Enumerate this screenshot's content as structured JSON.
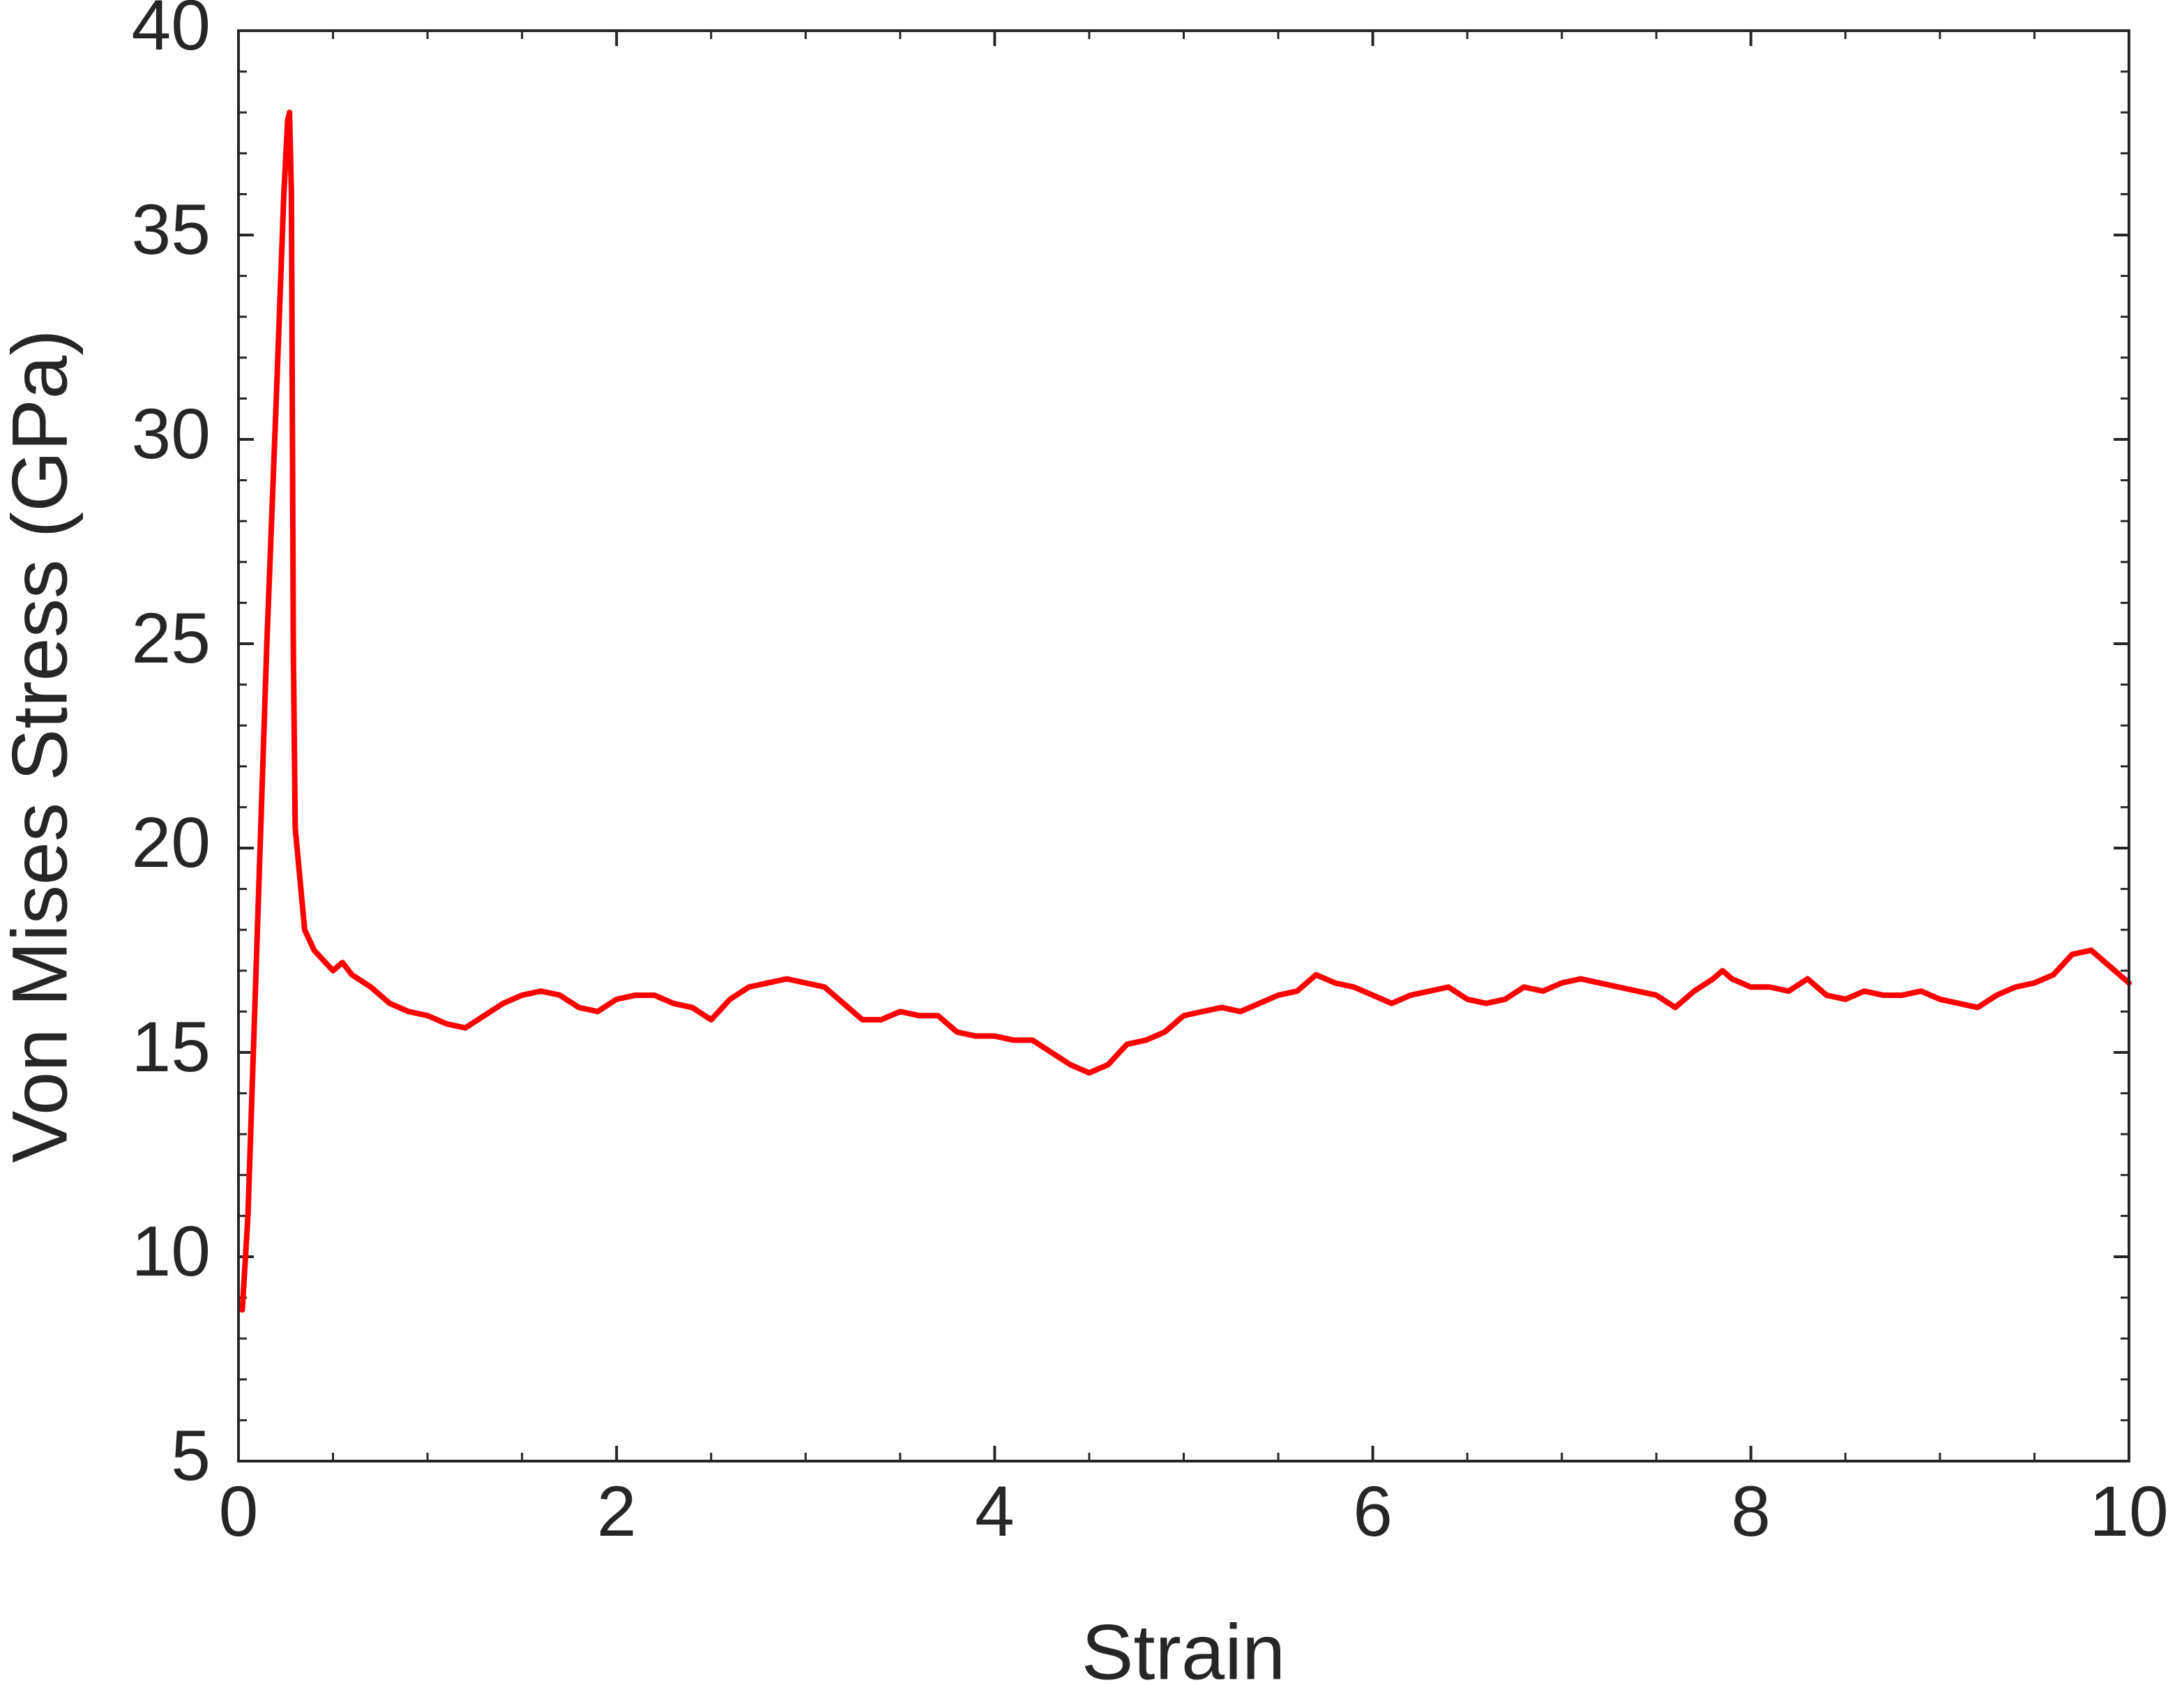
{
  "chart_data": {
    "type": "line",
    "x_label": "Strain",
    "y_label": "Von Mises Stress (GPa)",
    "xlim": [
      0,
      10
    ],
    "xticks": [
      0,
      2,
      4,
      6,
      8,
      10
    ],
    "ylim": [
      5,
      40
    ],
    "yticks": [
      5,
      10,
      15,
      20,
      25,
      30,
      35,
      40
    ],
    "grid": false,
    "x": [
      0.02,
      0.05,
      0.1,
      0.15,
      0.2,
      0.24,
      0.26,
      0.27,
      0.28,
      0.29,
      0.3,
      0.35,
      0.4,
      0.5,
      0.55,
      0.6,
      0.7,
      0.8,
      0.9,
      1.0,
      1.1,
      1.2,
      1.3,
      1.4,
      1.5,
      1.6,
      1.7,
      1.8,
      1.9,
      2.0,
      2.1,
      2.2,
      2.3,
      2.4,
      2.5,
      2.6,
      2.7,
      2.8,
      2.9,
      3.0,
      3.1,
      3.2,
      3.3,
      3.4,
      3.5,
      3.6,
      3.7,
      3.8,
      3.9,
      4.0,
      4.1,
      4.2,
      4.3,
      4.4,
      4.5,
      4.6,
      4.7,
      4.8,
      4.9,
      5.0,
      5.1,
      5.2,
      5.3,
      5.4,
      5.5,
      5.6,
      5.7,
      5.8,
      5.9,
      6.0,
      6.1,
      6.2,
      6.3,
      6.4,
      6.5,
      6.6,
      6.7,
      6.8,
      6.9,
      7.0,
      7.1,
      7.2,
      7.3,
      7.4,
      7.5,
      7.6,
      7.7,
      7.8,
      7.85,
      7.9,
      8.0,
      8.1,
      8.2,
      8.3,
      8.4,
      8.5,
      8.6,
      8.7,
      8.8,
      8.9,
      9.0,
      9.1,
      9.2,
      9.3,
      9.4,
      9.5,
      9.6,
      9.7,
      9.8,
      9.9,
      10.0
    ],
    "series": [
      {
        "color": "#ff0000",
        "values": [
          8.7,
          11,
          18,
          25,
          31,
          36,
          37.8,
          38,
          36,
          25,
          20.5,
          18,
          17.5,
          17,
          17.2,
          16.9,
          16.6,
          16.2,
          16.0,
          15.9,
          15.7,
          15.6,
          15.9,
          16.2,
          16.4,
          16.5,
          16.4,
          16.1,
          16.0,
          16.3,
          16.4,
          16.4,
          16.2,
          16.1,
          15.8,
          16.3,
          16.6,
          16.7,
          16.8,
          16.7,
          16.6,
          16.2,
          15.8,
          15.8,
          16.0,
          15.9,
          15.9,
          15.5,
          15.4,
          15.4,
          15.3,
          15.3,
          15.0,
          14.7,
          14.5,
          14.7,
          15.2,
          15.3,
          15.5,
          15.9,
          16.0,
          16.1,
          16.0,
          16.2,
          16.4,
          16.5,
          16.9,
          16.7,
          16.6,
          16.4,
          16.2,
          16.4,
          16.5,
          16.6,
          16.3,
          16.2,
          16.3,
          16.6,
          16.5,
          16.7,
          16.8,
          16.7,
          16.6,
          16.5,
          16.4,
          16.1,
          16.5,
          16.8,
          17.0,
          16.8,
          16.6,
          16.6,
          16.5,
          16.8,
          16.4,
          16.3,
          16.5,
          16.4,
          16.4,
          16.5,
          16.3,
          16.2,
          16.1,
          16.4,
          16.6,
          16.7,
          16.9,
          17.4,
          17.5,
          17.1,
          16.7
        ]
      }
    ]
  }
}
